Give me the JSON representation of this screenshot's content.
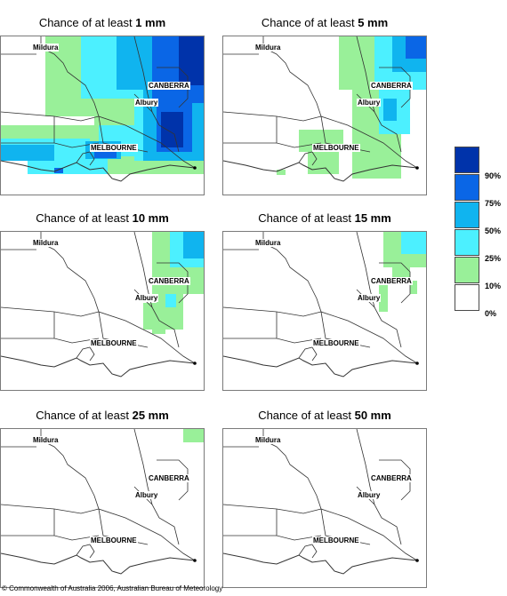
{
  "panels": [
    {
      "prefix": "Chance of at least ",
      "amount": "1 mm"
    },
    {
      "prefix": "Chance of at least ",
      "amount": "5 mm"
    },
    {
      "prefix": "Chance of at least ",
      "amount": "10 mm"
    },
    {
      "prefix": "Chance of at least ",
      "amount": "15 mm"
    },
    {
      "prefix": "Chance of at least ",
      "amount": "25 mm"
    },
    {
      "prefix": "Chance of at least ",
      "amount": "50 mm"
    }
  ],
  "cities": {
    "mildura": "Mildura",
    "canberra": "CANBERRA",
    "albury": "Albury",
    "melbourne": "MELBOURNE"
  },
  "legend": {
    "ticks": [
      "90%",
      "75%",
      "50%",
      "25%",
      "10%",
      "0%"
    ],
    "colors": [
      "#0033aa",
      "#0a66e6",
      "#10b4ef",
      "#4cf0ff",
      "#99f099",
      "#ffffff"
    ]
  },
  "footer": "© Commonwealth of Australia 2006, Australian Bureau of Meteorology"
}
